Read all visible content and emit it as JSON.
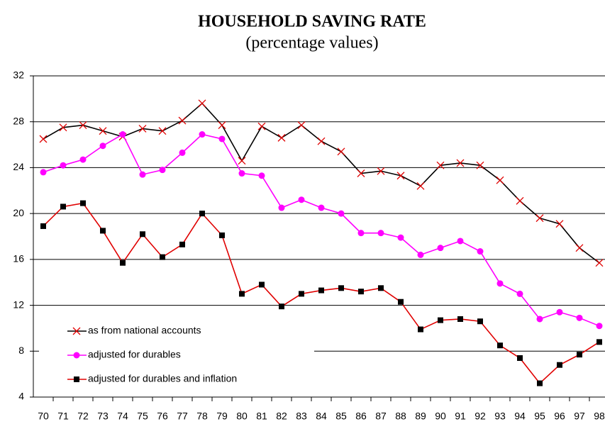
{
  "chart_data": {
    "type": "line",
    "title": "HOUSEHOLD SAVING RATE",
    "subtitle": "(percentage values)",
    "categories": [
      "70",
      "71",
      "72",
      "73",
      "74",
      "75",
      "76",
      "77",
      "78",
      "79",
      "80",
      "81",
      "82",
      "83",
      "84",
      "85",
      "86",
      "87",
      "88",
      "89",
      "90",
      "91",
      "92",
      "93",
      "94",
      "95",
      "96",
      "97",
      "98"
    ],
    "ylim": [
      4,
      32
    ],
    "yticks": [
      4,
      8,
      12,
      16,
      20,
      24,
      28,
      32
    ],
    "grid": true,
    "legend": "lower left",
    "series": [
      {
        "name": "as from national accounts",
        "color": "#000000",
        "marker": "x",
        "marker_color": "#e00000",
        "values": [
          26.5,
          27.5,
          27.7,
          27.2,
          26.7,
          27.4,
          27.2,
          28.1,
          29.6,
          27.7,
          24.6,
          27.6,
          26.6,
          27.7,
          26.3,
          25.4,
          23.5,
          23.7,
          23.3,
          22.4,
          24.2,
          24.4,
          24.2,
          22.9,
          21.1,
          19.6,
          19.1,
          17.0,
          15.7
        ]
      },
      {
        "name": "adjusted for durables",
        "color": "#ff00ff",
        "marker": "circle",
        "marker_color": "#ff00ff",
        "values": [
          23.6,
          24.2,
          24.7,
          25.9,
          26.9,
          23.4,
          23.8,
          25.3,
          26.9,
          26.5,
          23.5,
          23.3,
          20.5,
          21.2,
          20.5,
          20.0,
          18.3,
          18.3,
          17.9,
          16.4,
          17.0,
          17.6,
          16.7,
          13.9,
          13.0,
          10.8,
          11.4,
          10.9,
          10.2
        ]
      },
      {
        "name": "adjusted for durables and inflation",
        "color": "#e00000",
        "marker": "square",
        "marker_color": "#000000",
        "values": [
          18.9,
          20.6,
          20.9,
          18.5,
          15.7,
          18.2,
          16.2,
          17.3,
          20.0,
          18.1,
          13.0,
          13.8,
          11.9,
          13.0,
          13.3,
          13.5,
          13.2,
          13.5,
          12.3,
          9.9,
          10.7,
          10.8,
          10.6,
          8.5,
          7.4,
          5.2,
          6.8,
          7.7,
          8.8
        ]
      }
    ]
  }
}
